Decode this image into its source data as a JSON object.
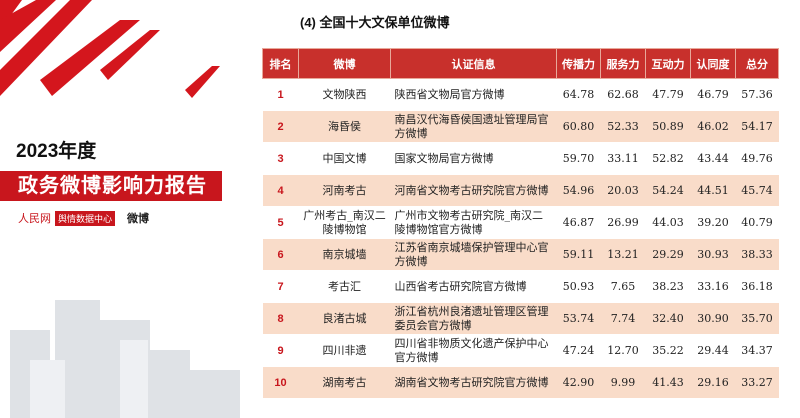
{
  "report": {
    "year": "2023年度",
    "title": "政务微博影响力报告",
    "logo_left": "人民网",
    "logo_center": "舆情数据中心",
    "logo_right": "微博"
  },
  "table": {
    "title": "(4) 全国十大文保单位微博",
    "columns": [
      "排名",
      "微博",
      "认证信息",
      "传播力",
      "服务力",
      "互动力",
      "认同度",
      "总分"
    ],
    "rows": [
      [
        "1",
        "文物陕西",
        "陕西省文物局官方微博",
        "64.78",
        "62.68",
        "47.79",
        "46.79",
        "57.36"
      ],
      [
        "2",
        "海昏侯",
        "南昌汉代海昏侯国遗址管理局官方微博",
        "60.80",
        "52.33",
        "50.89",
        "46.02",
        "54.17"
      ],
      [
        "3",
        "中国文博",
        "国家文物局官方微博",
        "59.70",
        "33.11",
        "52.82",
        "43.44",
        "49.76"
      ],
      [
        "4",
        "河南考古",
        "河南省文物考古研究院官方微博",
        "54.96",
        "20.03",
        "54.24",
        "44.51",
        "45.74"
      ],
      [
        "5",
        "广州考古_南汉二陵博物馆",
        "广州市文物考古研究院_南汉二陵博物馆官方微博",
        "46.87",
        "26.99",
        "44.03",
        "39.20",
        "40.79"
      ],
      [
        "6",
        "南京城墙",
        "江苏省南京城墙保护管理中心官方微博",
        "59.11",
        "13.21",
        "29.29",
        "30.93",
        "38.33"
      ],
      [
        "7",
        "考古汇",
        "山西省考古研究院官方微博",
        "50.93",
        "7.65",
        "38.23",
        "33.16",
        "36.18"
      ],
      [
        "8",
        "良渚古城",
        "浙江省杭州良渚遗址管理区管理委员会官方微博",
        "53.74",
        "7.74",
        "32.40",
        "30.90",
        "35.70"
      ],
      [
        "9",
        "四川非遗",
        "四川省非物质文化遗产保护中心官方微博",
        "47.24",
        "12.70",
        "35.22",
        "29.44",
        "34.37"
      ],
      [
        "10",
        "湖南考古",
        "湖南省文物考古研究院官方微博",
        "42.90",
        "9.99",
        "41.43",
        "29.16",
        "33.27"
      ]
    ]
  }
}
